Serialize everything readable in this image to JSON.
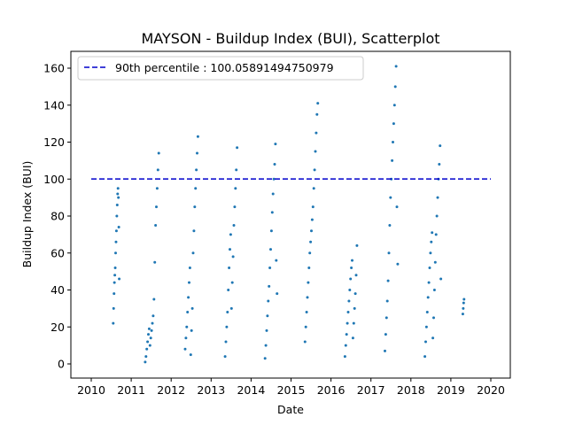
{
  "chart_data": {
    "type": "scatter",
    "title": "MAYSON - Buildup Index (BUI), Scatterplot",
    "xlabel": "Date",
    "ylabel": "Buildup Index (BUI)",
    "xlim": [
      2010,
      2020
    ],
    "ylim": [
      0,
      168
    ],
    "x_ticks": [
      "2010",
      "2011",
      "2012",
      "2013",
      "2014",
      "2015",
      "2016",
      "2017",
      "2018",
      "2019",
      "2020"
    ],
    "y_ticks": [
      "0",
      "20",
      "40",
      "60",
      "80",
      "100",
      "120",
      "140",
      "160"
    ],
    "grid": false,
    "legend_position": "top-left",
    "point_color": "#1f77b4",
    "threshold_color": "#0000cc",
    "reference_line": {
      "label": "90th percentile : 100.05891494750979",
      "y": 100.05891494750979,
      "x_range": [
        2010,
        2020
      ]
    },
    "series": [
      {
        "values": [
          [
            2010.55,
            22
          ],
          [
            2010.56,
            30
          ],
          [
            2010.57,
            38
          ],
          [
            2010.58,
            44
          ],
          [
            2010.59,
            48
          ],
          [
            2010.6,
            52
          ],
          [
            2010.61,
            60
          ],
          [
            2010.62,
            66
          ],
          [
            2010.63,
            72
          ],
          [
            2010.64,
            80
          ],
          [
            2010.65,
            86
          ],
          [
            2010.66,
            92
          ],
          [
            2010.67,
            95
          ],
          [
            2010.68,
            90
          ],
          [
            2010.69,
            74
          ],
          [
            2010.7,
            46
          ],
          [
            2011.35,
            1
          ],
          [
            2011.37,
            4
          ],
          [
            2011.39,
            8
          ],
          [
            2011.41,
            12
          ],
          [
            2011.43,
            16
          ],
          [
            2011.45,
            19
          ],
          [
            2011.47,
            10
          ],
          [
            2011.49,
            14
          ],
          [
            2011.51,
            18
          ],
          [
            2011.53,
            22
          ],
          [
            2011.55,
            26
          ],
          [
            2011.57,
            35
          ],
          [
            2011.59,
            55
          ],
          [
            2011.61,
            75
          ],
          [
            2011.63,
            85
          ],
          [
            2011.65,
            95
          ],
          [
            2011.67,
            105
          ],
          [
            2011.69,
            114
          ],
          [
            2012.35,
            8
          ],
          [
            2012.37,
            14
          ],
          [
            2012.39,
            20
          ],
          [
            2012.41,
            28
          ],
          [
            2012.43,
            36
          ],
          [
            2012.45,
            44
          ],
          [
            2012.47,
            52
          ],
          [
            2012.49,
            5
          ],
          [
            2012.51,
            18
          ],
          [
            2012.53,
            30
          ],
          [
            2012.55,
            60
          ],
          [
            2012.57,
            72
          ],
          [
            2012.59,
            85
          ],
          [
            2012.61,
            95
          ],
          [
            2012.63,
            105
          ],
          [
            2012.65,
            114
          ],
          [
            2012.67,
            123
          ],
          [
            2013.35,
            4
          ],
          [
            2013.37,
            12
          ],
          [
            2013.39,
            20
          ],
          [
            2013.41,
            28
          ],
          [
            2013.43,
            40
          ],
          [
            2013.45,
            52
          ],
          [
            2013.47,
            62
          ],
          [
            2013.49,
            70
          ],
          [
            2013.51,
            30
          ],
          [
            2013.53,
            44
          ],
          [
            2013.55,
            58
          ],
          [
            2013.57,
            75
          ],
          [
            2013.59,
            85
          ],
          [
            2013.61,
            95
          ],
          [
            2013.63,
            105
          ],
          [
            2013.65,
            117
          ],
          [
            2014.35,
            3
          ],
          [
            2014.37,
            10
          ],
          [
            2014.39,
            18
          ],
          [
            2014.41,
            26
          ],
          [
            2014.43,
            34
          ],
          [
            2014.45,
            42
          ],
          [
            2014.47,
            52
          ],
          [
            2014.49,
            62
          ],
          [
            2014.51,
            72
          ],
          [
            2014.53,
            82
          ],
          [
            2014.55,
            92
          ],
          [
            2014.57,
            100
          ],
          [
            2014.59,
            108
          ],
          [
            2014.61,
            119
          ],
          [
            2014.63,
            56
          ],
          [
            2014.65,
            38
          ],
          [
            2015.35,
            12
          ],
          [
            2015.37,
            20
          ],
          [
            2015.39,
            28
          ],
          [
            2015.41,
            36
          ],
          [
            2015.43,
            44
          ],
          [
            2015.45,
            52
          ],
          [
            2015.47,
            60
          ],
          [
            2015.49,
            66
          ],
          [
            2015.51,
            72
          ],
          [
            2015.53,
            78
          ],
          [
            2015.55,
            85
          ],
          [
            2015.57,
            95
          ],
          [
            2015.59,
            105
          ],
          [
            2015.61,
            115
          ],
          [
            2015.63,
            125
          ],
          [
            2015.65,
            135
          ],
          [
            2015.67,
            141
          ],
          [
            2016.35,
            4
          ],
          [
            2016.37,
            10
          ],
          [
            2016.39,
            16
          ],
          [
            2016.41,
            22
          ],
          [
            2016.43,
            28
          ],
          [
            2016.45,
            34
          ],
          [
            2016.47,
            40
          ],
          [
            2016.49,
            46
          ],
          [
            2016.51,
            52
          ],
          [
            2016.53,
            56
          ],
          [
            2016.55,
            14
          ],
          [
            2016.57,
            22
          ],
          [
            2016.59,
            30
          ],
          [
            2016.61,
            38
          ],
          [
            2016.63,
            48
          ],
          [
            2016.65,
            64
          ],
          [
            2017.35,
            7
          ],
          [
            2017.37,
            16
          ],
          [
            2017.39,
            25
          ],
          [
            2017.41,
            34
          ],
          [
            2017.43,
            45
          ],
          [
            2017.45,
            60
          ],
          [
            2017.47,
            75
          ],
          [
            2017.49,
            90
          ],
          [
            2017.51,
            100
          ],
          [
            2017.53,
            110
          ],
          [
            2017.55,
            120
          ],
          [
            2017.57,
            130
          ],
          [
            2017.59,
            140
          ],
          [
            2017.61,
            150
          ],
          [
            2017.63,
            161
          ],
          [
            2017.65,
            85
          ],
          [
            2017.67,
            54
          ],
          [
            2018.35,
            4
          ],
          [
            2018.37,
            12
          ],
          [
            2018.39,
            20
          ],
          [
            2018.41,
            28
          ],
          [
            2018.43,
            36
          ],
          [
            2018.45,
            44
          ],
          [
            2018.47,
            52
          ],
          [
            2018.49,
            60
          ],
          [
            2018.51,
            66
          ],
          [
            2018.53,
            71
          ],
          [
            2018.55,
            14
          ],
          [
            2018.57,
            25
          ],
          [
            2018.59,
            40
          ],
          [
            2018.61,
            55
          ],
          [
            2018.63,
            70
          ],
          [
            2018.65,
            80
          ],
          [
            2018.67,
            90
          ],
          [
            2018.69,
            100
          ],
          [
            2018.71,
            108
          ],
          [
            2018.73,
            118
          ],
          [
            2018.75,
            46
          ],
          [
            2019.3,
            27
          ],
          [
            2019.31,
            30
          ],
          [
            2019.32,
            33
          ],
          [
            2019.33,
            35
          ]
        ]
      }
    ]
  }
}
